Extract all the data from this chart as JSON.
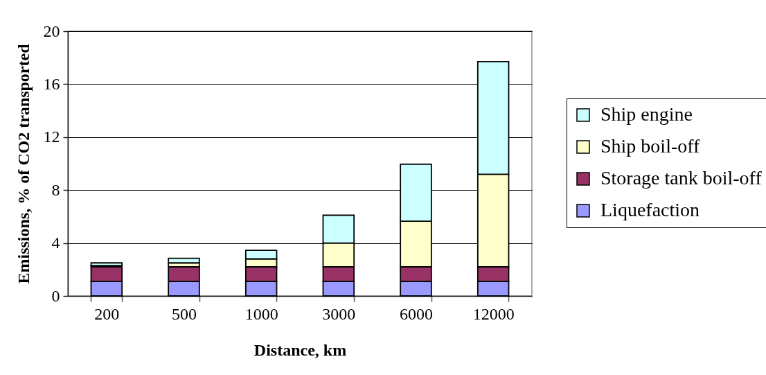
{
  "chart_data": {
    "type": "bar",
    "stacked": true,
    "xlabel": "Distance, km",
    "ylabel": "Emissions, % of CO2 transported",
    "categories": [
      "200",
      "500",
      "1000",
      "3000",
      "6000",
      "12000"
    ],
    "series": [
      {
        "name": "Liquefaction",
        "color": "#9999ff",
        "values": [
          1.1,
          1.1,
          1.1,
          1.1,
          1.1,
          1.1
        ]
      },
      {
        "name": "Storage tank boil-off",
        "color": "#993366",
        "values": [
          1.1,
          1.1,
          1.1,
          1.1,
          1.1,
          1.1
        ]
      },
      {
        "name": "Ship boil-off",
        "color": "#ffffcc",
        "values": [
          0.1,
          0.3,
          0.6,
          1.8,
          3.45,
          7.0
        ]
      },
      {
        "name": "Ship engine",
        "color": "#ccffff",
        "values": [
          0.2,
          0.35,
          0.65,
          2.1,
          4.3,
          8.5
        ]
      }
    ],
    "ylim": [
      0,
      20
    ],
    "yticks": [
      0,
      4,
      8,
      12,
      16,
      20
    ],
    "grid": "y",
    "legend": "right"
  }
}
